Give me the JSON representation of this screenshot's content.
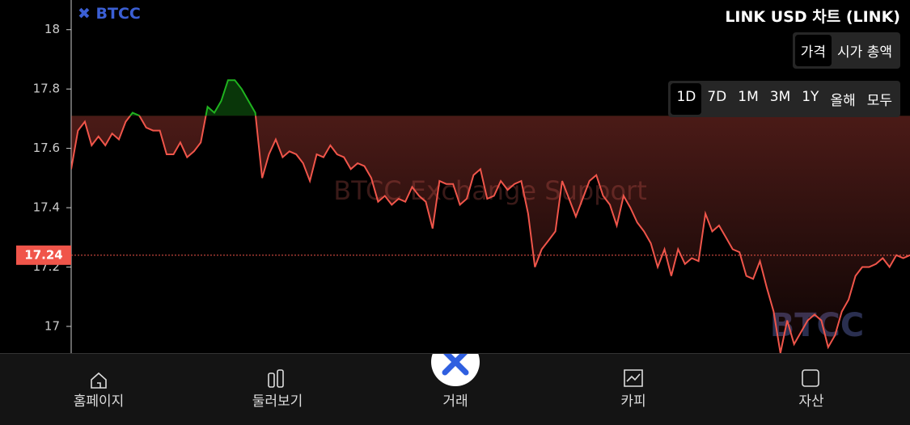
{
  "chart_data": {
    "type": "line",
    "title": "LINK USD 차트 (LINK)",
    "values": [
      17.53,
      17.66,
      17.69,
      17.61,
      17.64,
      17.61,
      17.65,
      17.63,
      17.69,
      17.72,
      17.71,
      17.67,
      17.66,
      17.66,
      17.58,
      17.58,
      17.62,
      17.57,
      17.59,
      17.62,
      17.74,
      17.72,
      17.76,
      17.83,
      17.83,
      17.8,
      17.76,
      17.72,
      17.5,
      17.58,
      17.63,
      17.57,
      17.59,
      17.58,
      17.55,
      17.49,
      17.58,
      17.57,
      17.61,
      17.58,
      17.57,
      17.53,
      17.55,
      17.54,
      17.5,
      17.42,
      17.44,
      17.41,
      17.43,
      17.42,
      17.47,
      17.44,
      17.42,
      17.33,
      17.49,
      17.48,
      17.48,
      17.41,
      17.43,
      17.51,
      17.53,
      17.43,
      17.44,
      17.49,
      17.46,
      17.48,
      17.49,
      17.38,
      17.2,
      17.26,
      17.29,
      17.32,
      17.49,
      17.43,
      17.37,
      17.43,
      17.49,
      17.51,
      17.44,
      17.41,
      17.34,
      17.44,
      17.4,
      17.35,
      17.32,
      17.28,
      17.2,
      17.26,
      17.17,
      17.26,
      17.21,
      17.23,
      17.22,
      17.38,
      17.32,
      17.34,
      17.3,
      17.26,
      17.25,
      17.17,
      17.16,
      17.22,
      17.13,
      17.05,
      16.91,
      17.02,
      16.94,
      16.98,
      17.02,
      17.04,
      17.02,
      16.93,
      16.97,
      17.05,
      17.09,
      17.17,
      17.2,
      17.2,
      17.21,
      17.23,
      17.2,
      17.24,
      17.23,
      17.24
    ],
    "baseline": 17.71,
    "up_color": "#1fb31f",
    "down_color": "#f0554a",
    "last_price": 17.24,
    "ylim": [
      16.91,
      18.1
    ],
    "yticks": [
      17,
      17.2,
      17.4,
      17.6,
      17.8,
      18
    ],
    "watermark": "BTCC Exchange Support",
    "watermark_logo": "BTCC"
  },
  "header": {
    "logo": "BTCC",
    "tabs": [
      "가격",
      "시가 총액"
    ],
    "ranges": [
      "1D",
      "7D",
      "1M",
      "3M",
      "1Y",
      "올해",
      "모두"
    ]
  },
  "nav": [
    "홈페이지",
    "둘러보기",
    "거래",
    "카피",
    "자산"
  ]
}
